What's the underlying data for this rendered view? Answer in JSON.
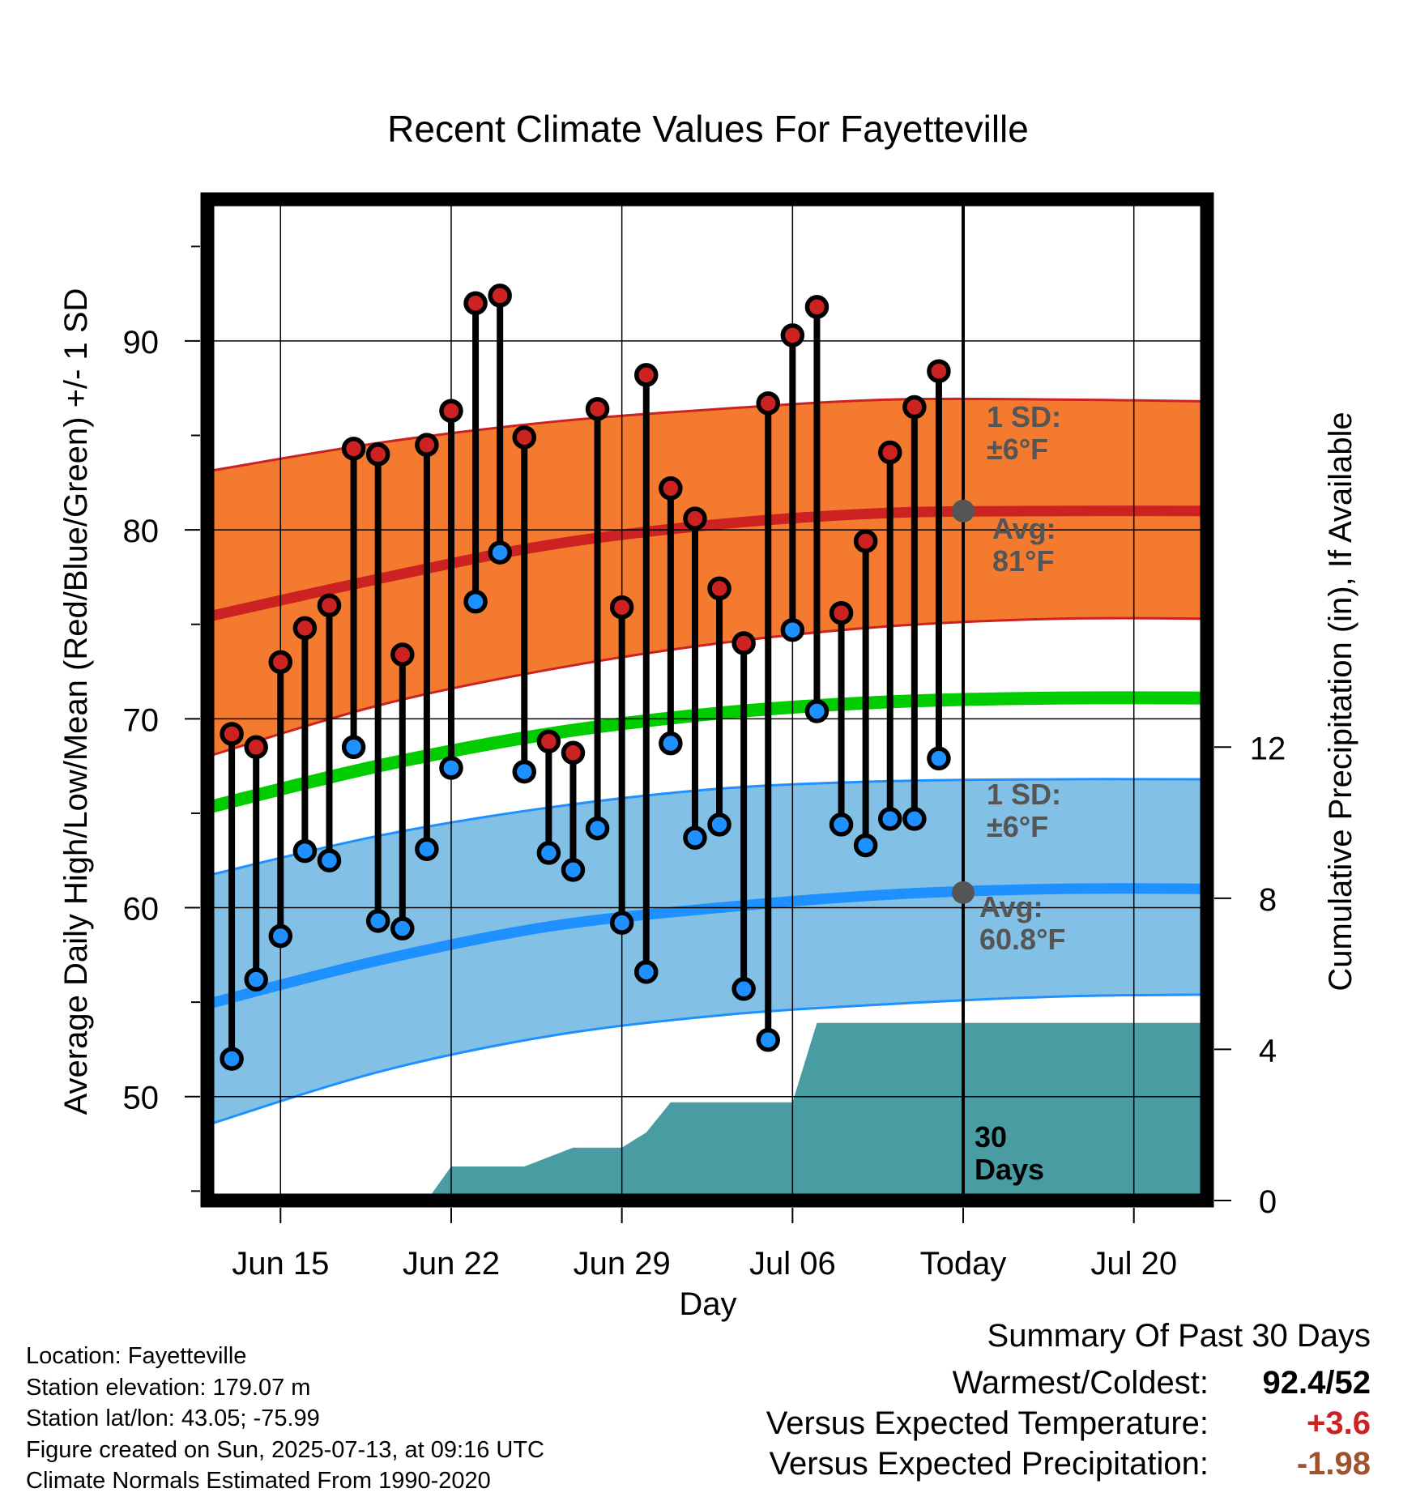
{
  "chart_data": {
    "type": "line",
    "title": "Recent Climate Values For Fayetteville",
    "xlabel": "Day",
    "ylabel": "Average Daily High/Low/Mean (Red/Blue/Green) +/- 1 SD",
    "y2label": "Cumulative Precipitation (in), If Available",
    "ylim": [
      44.5,
      97.5
    ],
    "y2lim": [
      0,
      26.5
    ],
    "xlim": [
      "Jun 12",
      "Jul 23"
    ],
    "yticks": [
      "50",
      "60",
      "70",
      "80",
      "90"
    ],
    "y2ticks": [
      "0",
      "4",
      "8",
      "12"
    ],
    "xticks": [
      "Jun 15",
      "Jun 22",
      "Jun 29",
      "Jul 06",
      "Today",
      "Jul 20"
    ],
    "xtick_dates": [
      "Jun 15",
      "Jun 22",
      "Jun 29",
      "Jul 06",
      "Jul 13",
      "Jul 20"
    ],
    "grid": true,
    "today": "Jul 13",
    "days": [
      "Jun 13",
      "Jun 14",
      "Jun 15",
      "Jun 16",
      "Jun 17",
      "Jun 18",
      "Jun 19",
      "Jun 20",
      "Jun 21",
      "Jun 22",
      "Jun 23",
      "Jun 24",
      "Jun 25",
      "Jun 26",
      "Jun 27",
      "Jun 28",
      "Jun 29",
      "Jun 30",
      "Jul 01",
      "Jul 02",
      "Jul 03",
      "Jul 04",
      "Jul 05",
      "Jul 06",
      "Jul 07",
      "Jul 08",
      "Jul 09",
      "Jul 10",
      "Jul 11",
      "Jul 12"
    ],
    "series": [
      {
        "name": "High",
        "color": "#cc2222",
        "values": [
          69.2,
          68.5,
          73.0,
          74.8,
          76.0,
          84.3,
          84.0,
          73.4,
          84.5,
          86.3,
          92.0,
          92.4,
          84.9,
          68.8,
          68.2,
          86.4,
          75.9,
          88.2,
          82.2,
          80.6,
          76.9,
          74.0,
          86.7,
          90.3,
          91.8,
          75.6,
          79.4,
          84.1,
          86.5,
          88.4
        ]
      },
      {
        "name": "Low",
        "color": "#1e90ff",
        "values": [
          52.0,
          56.2,
          58.5,
          63.0,
          62.5,
          68.5,
          59.3,
          58.9,
          63.1,
          67.4,
          76.2,
          78.8,
          67.2,
          62.9,
          62.0,
          64.2,
          59.2,
          56.6,
          68.7,
          63.7,
          64.4,
          55.7,
          53.0,
          74.7,
          70.4,
          64.4,
          63.3,
          64.7,
          64.7,
          67.9
        ]
      }
    ],
    "normal_band_days": [
      "Jun 12",
      "Jun 19",
      "Jun 26",
      "Jul 03",
      "Jul 10",
      "Jul 17",
      "Jul 23"
    ],
    "normal_high_mean": [
      75.4,
      77.4,
      79.2,
      80.3,
      80.9,
      81.0,
      81.0
    ],
    "normal_high_upper": [
      83.1,
      84.6,
      85.7,
      86.4,
      86.9,
      86.9,
      86.8
    ],
    "normal_high_lower": [
      68.0,
      70.7,
      72.6,
      74.0,
      74.9,
      75.3,
      75.3
    ],
    "normal_mean": [
      65.3,
      67.5,
      69.2,
      70.3,
      70.9,
      71.1,
      71.1
    ],
    "normal_low_mean": [
      54.9,
      57.2,
      59.0,
      60.0,
      60.7,
      61.0,
      61.0
    ],
    "normal_low_upper": [
      61.7,
      63.8,
      65.3,
      66.3,
      66.7,
      66.8,
      66.8
    ],
    "normal_low_lower": [
      48.5,
      51.3,
      53.2,
      54.3,
      54.9,
      55.3,
      55.4
    ],
    "precip_days": [
      "Jun 12",
      "Jun 21",
      "Jun 22",
      "Jun 25",
      "Jun 27",
      "Jun 29",
      "Jun 30",
      "Jul 01",
      "Jul 06",
      "Jul 07",
      "Jul 23"
    ],
    "precip_cumulative": [
      0.0,
      0.0,
      0.9,
      0.9,
      1.4,
      1.4,
      1.8,
      2.6,
      2.6,
      4.7,
      4.7
    ],
    "annotations": {
      "high_sd": "1 SD:\n±6°F",
      "high_avg": "Avg:\n81°F",
      "low_sd": "1 SD:\n±6°F",
      "low_avg": "Avg:\n60.8°F",
      "period": "30\nDays"
    }
  },
  "info": {
    "location": "Location: Fayetteville",
    "elevation": "Station elevation: 179.07 m",
    "latlon": "Station lat/lon: 43.05; -75.99",
    "created": "Figure created on Sun, 2025-07-13, at 09:16 UTC",
    "normals": "Climate Normals Estimated From 1990-2020"
  },
  "summary": {
    "title": "Summary Of Past 30 Days",
    "warm_cold_label": "Warmest/Coldest:",
    "warm_cold_value": "92.4/52",
    "temp_label": "Versus Expected Temperature:",
    "temp_value": "+3.6",
    "temp_color": "#cc2222",
    "precip_label": "Versus Expected Precipitation:",
    "precip_value": "-1.98",
    "precip_color": "#a0522d"
  },
  "colors": {
    "high_band": "#f47a30",
    "high_line": "#cc2222",
    "low_band": "#82c0e6",
    "low_line": "#1e90ff",
    "mean_line": "#00cc00",
    "precip_fill": "#4a9ca3",
    "avg_marker": "#555555",
    "annotation_text": "#555555"
  }
}
